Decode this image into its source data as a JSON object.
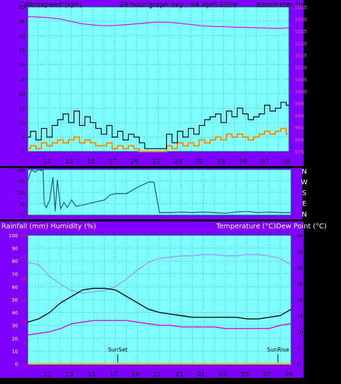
{
  "header": {
    "left_title": "Windspeed (kph)",
    "center_title": "24 hour graph day : 04 April 2019",
    "right_title": "Barometer (hpa)"
  },
  "middle_header": {
    "left_title": "Rainfall (mm)  Humidity (%)",
    "right_title": "Temperature (°C)Dew Point (°C)"
  },
  "time_labels": [
    "11",
    "13",
    "15",
    "17",
    "19",
    "21",
    "23",
    "01",
    "03",
    "05",
    "07",
    "09"
  ],
  "direction_labels": [
    "N",
    "W",
    "S",
    "E",
    "N"
  ],
  "colors": {
    "panel_bg": "#7fffff",
    "frame_bg": "#7f00ff",
    "grid": "#0a8fa0",
    "wind_gust": "#000000",
    "wind_avg": "#ff8c00",
    "wind_green": "#00cc00",
    "barometer": "#e000e0",
    "direction": "#1f5f8f",
    "humidity": "#9a9aff",
    "temperature": "#000000",
    "dewpoint": "#e000e0",
    "rain_axis": "#ff2020"
  },
  "chart_data": [
    {
      "type": "line",
      "name": "wind-barometer",
      "x_ticks": [
        "11",
        "13",
        "15",
        "17",
        "19",
        "21",
        "23",
        "01",
        "03",
        "05",
        "07",
        "09"
      ],
      "y_left": {
        "label": "Windspeed (kph)",
        "ticks": [
          0,
          5,
          10,
          15,
          20,
          25,
          30,
          35,
          40,
          45,
          50
        ],
        "ylim": [
          0,
          50
        ]
      },
      "y_right": {
        "label": "Barometer (hpa)",
        "ticks": [
          975,
          980,
          985,
          990,
          995,
          1000,
          1005,
          1010,
          1015,
          1020,
          1025,
          1030,
          1035
        ],
        "ylim": [
          975,
          1035
        ]
      },
      "x_range_hours": [
        0,
        24
      ],
      "grid": true,
      "series": [
        {
          "name": "Barometer",
          "axis": "right",
          "x": [
            0,
            1,
            2,
            3,
            4,
            5,
            6,
            7,
            8,
            9,
            10,
            11,
            12,
            13,
            14,
            15,
            16,
            17,
            18,
            19,
            20,
            21,
            22,
            23,
            24
          ],
          "values": [
            1031,
            1030.8,
            1030.5,
            1030,
            1029,
            1028,
            1027.5,
            1027.2,
            1027.3,
            1027.6,
            1028,
            1028.4,
            1028.7,
            1028.6,
            1028.2,
            1027.7,
            1027.2,
            1026.9,
            1026.8,
            1026.6,
            1026.5,
            1026.4,
            1026.2,
            1026.1,
            1026.3
          ]
        },
        {
          "name": "Gust",
          "axis": "left",
          "x": [
            0,
            0.5,
            1,
            1.5,
            2,
            2.5,
            3,
            3.5,
            4,
            4.5,
            5,
            5.5,
            6,
            6.5,
            7,
            7.5,
            8,
            8.5,
            9,
            9.5,
            10,
            10.5,
            11,
            11.5,
            12,
            12.5,
            13,
            13.5,
            14,
            14.5,
            15,
            15.5,
            16,
            16.5,
            17,
            17.5,
            18,
            18.5,
            19,
            19.5,
            20,
            20.5,
            21,
            21.5,
            22,
            22.5,
            23,
            23.5,
            24
          ],
          "values": [
            5,
            7,
            4,
            8,
            5,
            9,
            11,
            13,
            10,
            14,
            9,
            12,
            10,
            8,
            6,
            9,
            5,
            7,
            4,
            6,
            5,
            3,
            1,
            1,
            1,
            1,
            6,
            3,
            7,
            5,
            8,
            6,
            9,
            11,
            12,
            13,
            10,
            14,
            12,
            15,
            13,
            11,
            12,
            13,
            16,
            14,
            15,
            17,
            16
          ]
        },
        {
          "name": "Average",
          "axis": "left",
          "x": [
            0,
            0.5,
            1,
            1.5,
            2,
            2.5,
            3,
            3.5,
            4,
            4.5,
            5,
            5.5,
            6,
            6.5,
            7,
            7.5,
            8,
            8.5,
            9,
            9.5,
            10,
            10.5,
            11,
            11.5,
            12,
            12.5,
            13,
            13.5,
            14,
            14.5,
            15,
            15.5,
            16,
            16.5,
            17,
            17.5,
            18,
            18.5,
            19,
            19.5,
            20,
            20.5,
            21,
            21.5,
            22,
            22.5,
            23,
            23.5,
            24
          ],
          "values": [
            1,
            2,
            1,
            3,
            2,
            3,
            4,
            3,
            4,
            5,
            3,
            4,
            3,
            2,
            2,
            3,
            1,
            2,
            1,
            2,
            1,
            0,
            0,
            0,
            0,
            0,
            2,
            1,
            3,
            2,
            3,
            2,
            4,
            3,
            4,
            5,
            4,
            6,
            5,
            6,
            5,
            4,
            5,
            6,
            7,
            6,
            7,
            8,
            6
          ]
        }
      ]
    },
    {
      "type": "line",
      "name": "wind-direction",
      "x_ticks": [
        "11",
        "13",
        "15",
        "17",
        "19",
        "21",
        "23",
        "01",
        "03",
        "05",
        "07",
        "09"
      ],
      "y_left": {
        "ticks": [
          0,
          90,
          180,
          270,
          360
        ],
        "ylim": [
          0,
          360
        ]
      },
      "y_right": {
        "labels": [
          "N",
          "W",
          "S",
          "E",
          "N"
        ]
      },
      "x_range_hours": [
        0,
        24
      ],
      "grid": true,
      "series": [
        {
          "name": "Direction",
          "x": [
            0,
            0.3,
            0.5,
            0.7,
            1,
            1.2,
            1.4,
            1.5,
            1.7,
            2,
            2.3,
            2.5,
            2.7,
            3,
            3.3,
            3.6,
            4,
            4.4,
            5,
            6,
            7,
            7.5,
            8,
            9,
            10,
            11,
            11.5,
            12,
            13,
            14,
            15,
            16,
            17,
            18,
            19,
            20,
            21,
            22,
            23,
            24
          ],
          "values": [
            270,
            350,
            350,
            340,
            360,
            350,
            360,
            90,
            60,
            120,
            300,
            30,
            280,
            50,
            100,
            60,
            120,
            70,
            80,
            100,
            120,
            160,
            170,
            170,
            220,
            260,
            260,
            20,
            20,
            25,
            20,
            25,
            20,
            15,
            25,
            30,
            20,
            25,
            20,
            20
          ]
        }
      ]
    },
    {
      "type": "line",
      "name": "rain-humidity-temperature",
      "x_ticks": [
        "11",
        "13",
        "15",
        "17",
        "19",
        "21",
        "23",
        "01",
        "03",
        "05",
        "07",
        "09"
      ],
      "y_left": {
        "label": "Humidity (%)",
        "ticks": [
          0,
          10,
          20,
          30,
          40,
          50,
          60,
          70,
          80,
          90,
          100
        ],
        "ylim": [
          0,
          100
        ]
      },
      "y_rain": {
        "label": "Rainfall (mm)",
        "ticks": [
          0,
          5,
          10,
          15,
          20,
          25,
          30
        ],
        "ylim": [
          0,
          30
        ]
      },
      "y_right": {
        "label": "Temperature (°C)",
        "ticks": [
          0,
          5,
          10,
          15,
          20,
          25,
          30,
          35,
          40
        ],
        "ylim": [
          0,
          40
        ]
      },
      "x_range_hours": [
        0,
        24
      ],
      "grid": true,
      "annotations": [
        {
          "text": "SunSet",
          "x_hour": 8.2
        },
        {
          "text": "SunRise",
          "x_hour": 22.8
        }
      ],
      "series": [
        {
          "name": "Humidity",
          "axis": "left",
          "x": [
            0,
            1,
            2,
            3,
            4,
            5,
            6,
            7,
            8,
            9,
            10,
            11,
            12,
            13,
            14,
            15,
            16,
            17,
            18,
            19,
            20,
            21,
            22,
            23,
            24
          ],
          "values": [
            79,
            77,
            68,
            62,
            57,
            55,
            56,
            57,
            60,
            66,
            73,
            79,
            82,
            83,
            84,
            84,
            85,
            85,
            84,
            84,
            85,
            85,
            84,
            82,
            77
          ]
        },
        {
          "name": "Temperature",
          "axis": "right",
          "x": [
            0,
            1,
            2,
            3,
            4,
            5,
            6,
            7,
            8,
            9,
            10,
            11,
            12,
            13,
            14,
            15,
            16,
            17,
            18,
            19,
            20,
            21,
            22,
            23,
            24
          ],
          "values": [
            13,
            14,
            16,
            19,
            21,
            23,
            23.5,
            23.5,
            23,
            21,
            19,
            17,
            16,
            15.5,
            15,
            14.5,
            14.5,
            14.5,
            14.5,
            14.5,
            14,
            14,
            14.5,
            15,
            17
          ]
        },
        {
          "name": "Dew Point",
          "axis": "right",
          "x": [
            0,
            1,
            2,
            3,
            4,
            5,
            6,
            7,
            8,
            9,
            10,
            11,
            12,
            13,
            14,
            15,
            16,
            17,
            18,
            19,
            20,
            21,
            22,
            23,
            24
          ],
          "values": [
            9,
            9.5,
            10,
            11,
            12.5,
            13,
            13.5,
            13.5,
            13.5,
            13.5,
            13,
            12.5,
            12,
            12,
            11.5,
            11.5,
            11.5,
            11.5,
            11,
            11,
            11,
            11,
            11,
            12,
            12.5
          ]
        },
        {
          "name": "Rainfall",
          "axis": "rain",
          "x": [
            0,
            24
          ],
          "values": [
            0,
            0
          ]
        }
      ]
    }
  ]
}
